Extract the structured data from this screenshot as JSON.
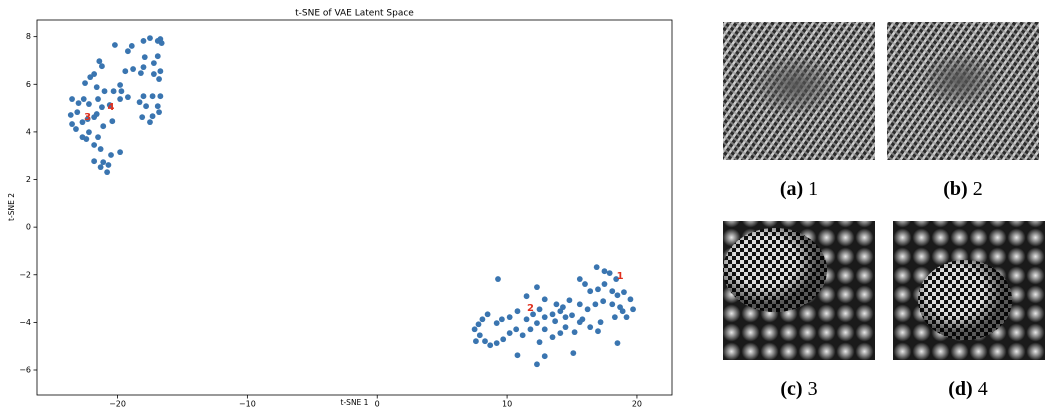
{
  "chart_data": {
    "type": "scatter",
    "title": "t-SNE of VAE Latent Space",
    "x_label": "t-SNE 1",
    "y_label": "t-SNE 2",
    "color": "#3a75b0",
    "xlim": [
      -26.2,
      22.7
    ],
    "ylim": [
      -7.05,
      8.7
    ],
    "xticks": [
      {
        "value": -20,
        "label": "−20"
      },
      {
        "value": -10,
        "label": "−10"
      },
      0,
      10,
      20
    ],
    "yticks": [
      {
        "value": -6,
        "label": "−6"
      },
      {
        "value": -4,
        "label": "−4"
      },
      {
        "value": -2,
        "label": "−2"
      },
      0,
      2,
      4,
      6,
      8
    ],
    "x": [
      -17.5,
      -16.9,
      -16.7,
      -16.6,
      -18.0,
      -18.9,
      -19.2,
      -17.9,
      -16.9,
      -17.2,
      -16.7,
      -17.2,
      -16.8,
      -18.0,
      -18.2,
      -18.8,
      -19.4,
      -20.2,
      -21.4,
      -21.2,
      -21.8,
      -22.5,
      -22.1,
      -21.6,
      -21.0,
      -20.3,
      -19.8,
      -19.7,
      -19.2,
      -18.0,
      -17.3,
      -16.7,
      -18.3,
      -17.8,
      -16.9,
      -18.1,
      -17.3,
      -16.8,
      -17.5,
      -23.5,
      -23.0,
      -22.6,
      -22.2,
      -21.5,
      -21.2,
      -20.6,
      -19.8,
      -20.4,
      -21.6,
      -23.6,
      -23.1,
      -23.5,
      -23.2,
      -22.7,
      -22.3,
      -21.8,
      -21.1,
      -22.4,
      -21.5,
      -21.8,
      -21.3,
      -20.5,
      -19.8,
      -21.8,
      -21.1,
      -20.7,
      -21.3,
      -20.8,
      -22.7,
      -22.2,
      9.3,
      11.5,
      12.3,
      12.9,
      13.8,
      14.3,
      14.8,
      15.6,
      16.0,
      16.4,
      16.9,
      17.5,
      17.9,
      18.4,
      17.0,
      17.5,
      18.1,
      18.5,
      19.0,
      19.5,
      19.7,
      19.2,
      18.7,
      18.1,
      17.4,
      16.8,
      16.2,
      15.6,
      15.0,
      14.5,
      14.1,
      13.5,
      12.9,
      12.5,
      12.0,
      11.5,
      10.8,
      10.2,
      9.6,
      9.2,
      8.5,
      8.1,
      7.8,
      7.5,
      7.9,
      8.3,
      8.7,
      9.2,
      9.7,
      10.2,
      10.7,
      11.2,
      11.8,
      12.3,
      12.9,
      13.5,
      14.1,
      14.5,
      15.2,
      15.6,
      16.4,
      17.0,
      18.3,
      18.9,
      10.8,
      12.3,
      12.9,
      15.1,
      18.5,
      7.6,
      12.5,
      13.7,
      15.8,
      17.2
    ],
    "values": [
      7.94,
      7.82,
      7.9,
      7.73,
      7.82,
      7.61,
      7.39,
      7.14,
      7.18,
      6.89,
      6.55,
      6.43,
      6.22,
      6.72,
      6.47,
      6.64,
      6.55,
      7.65,
      6.97,
      6.76,
      6.43,
      6.05,
      6.3,
      5.88,
      5.71,
      5.71,
      5.97,
      5.71,
      5.46,
      5.5,
      5.5,
      5.5,
      5.25,
      5.08,
      5.08,
      4.62,
      4.66,
      4.83,
      4.41,
      5.38,
      5.21,
      5.38,
      5.17,
      5.38,
      5.04,
      5.13,
      5.38,
      4.45,
      4.75,
      4.71,
      4.83,
      4.33,
      4.12,
      4.41,
      4.54,
      4.62,
      4.24,
      3.7,
      3.78,
      3.45,
      3.28,
      3.03,
      3.15,
      2.77,
      2.73,
      2.61,
      2.52,
      2.31,
      3.78,
      3.99,
      -2.18,
      -2.9,
      -2.52,
      -3.03,
      -3.24,
      -3.36,
      -3.07,
      -2.18,
      -2.39,
      -2.69,
      -1.68,
      -1.85,
      -1.93,
      -2.18,
      -2.61,
      -2.39,
      -2.69,
      -2.86,
      -2.73,
      -3.03,
      -3.45,
      -3.78,
      -3.36,
      -3.24,
      -3.11,
      -3.24,
      -3.45,
      -3.24,
      -3.7,
      -3.78,
      -3.53,
      -3.66,
      -3.78,
      -3.45,
      -3.66,
      -3.87,
      -3.53,
      -3.78,
      -3.87,
      -4.03,
      -3.66,
      -3.87,
      -4.08,
      -4.29,
      -4.54,
      -4.79,
      -4.96,
      -4.87,
      -4.71,
      -4.45,
      -4.29,
      -4.54,
      -4.29,
      -4.03,
      -4.29,
      -4.62,
      -4.45,
      -4.2,
      -4.41,
      -3.99,
      -4.2,
      -4.37,
      -3.78,
      -3.53,
      -5.38,
      -5.76,
      -5.42,
      -5.29,
      -4.87,
      -4.79,
      -4.83,
      -3.95,
      -3.87,
      -3.99
    ],
    "annotations": [
      {
        "text": "1",
        "x": 18.7,
        "y": -2.06,
        "color": "#e0301e"
      },
      {
        "text": "2",
        "x": 11.8,
        "y": -3.4,
        "color": "#e0301e"
      },
      {
        "text": "3",
        "x": -22.3,
        "y": 4.62,
        "color": "#e0301e"
      },
      {
        "text": "4",
        "x": -20.5,
        "y": 5.04,
        "color": "#e0301e"
      }
    ]
  },
  "figures": [
    {
      "label": "(a)",
      "caption": "1"
    },
    {
      "label": "(b)",
      "caption": "2"
    },
    {
      "label": "(c)",
      "caption": "3"
    },
    {
      "label": "(d)",
      "caption": "4"
    }
  ]
}
